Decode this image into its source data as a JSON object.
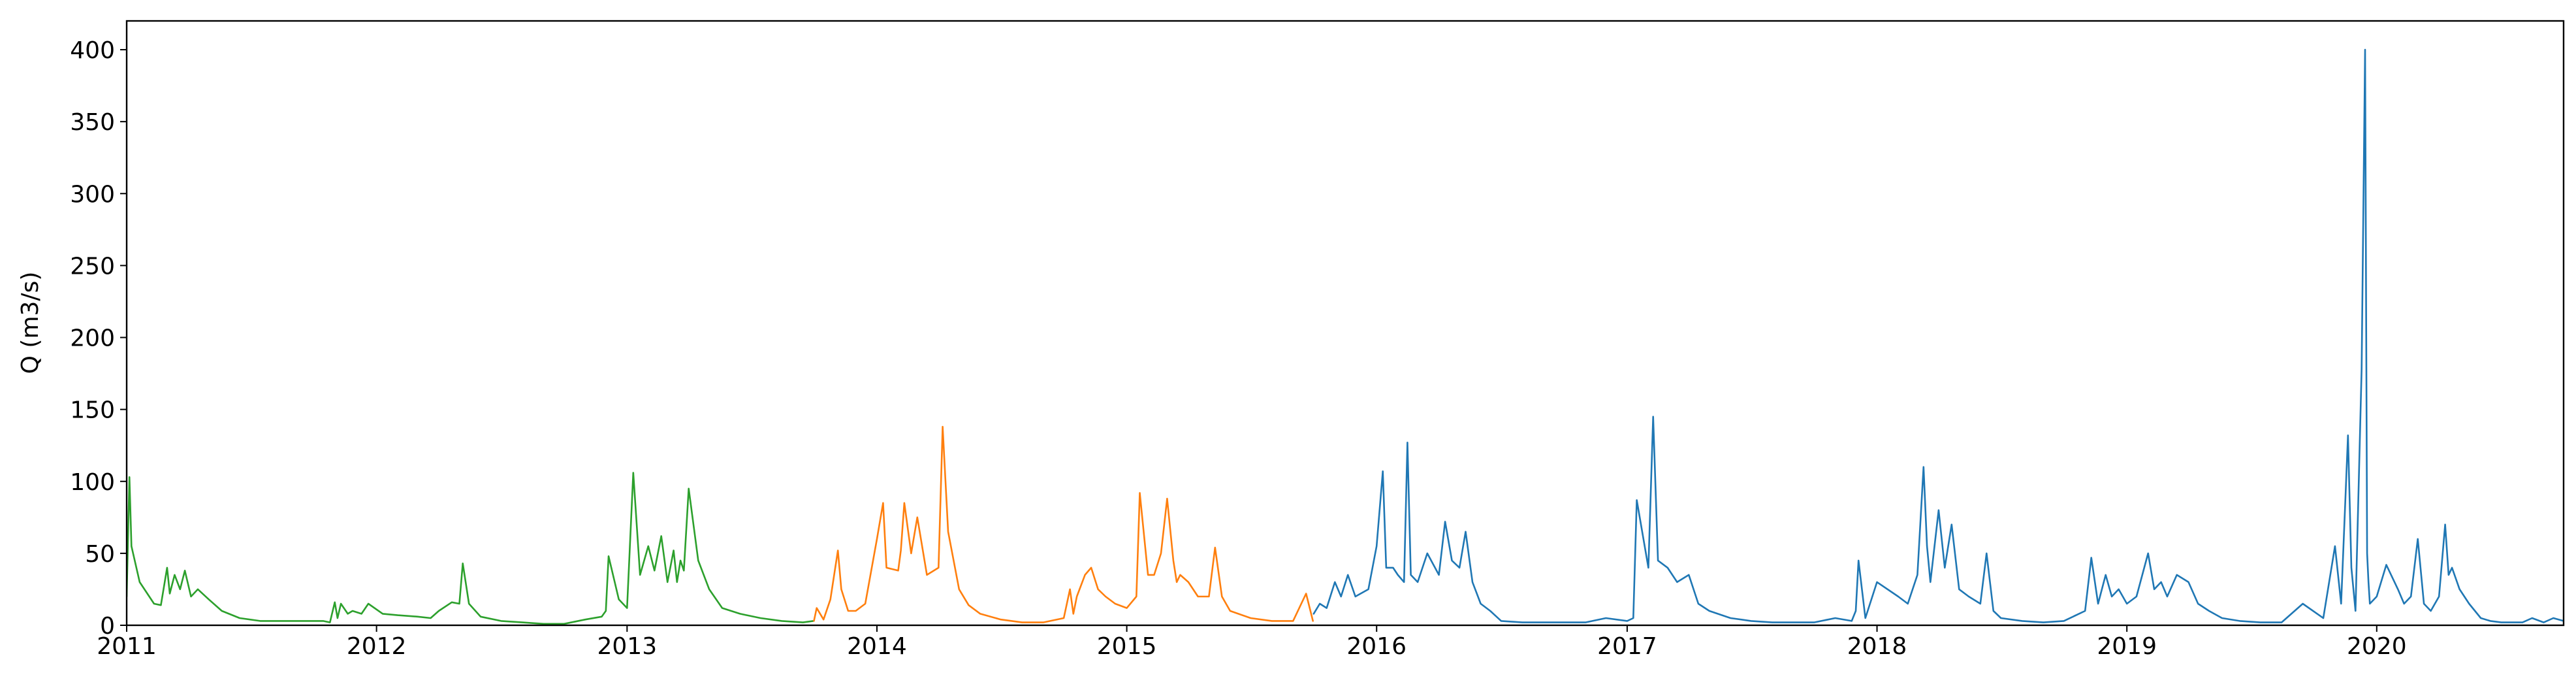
{
  "chart_data": {
    "type": "line",
    "title": "",
    "xlabel": "",
    "ylabel": "Q (m3/s)",
    "xlim": [
      "2011-01-01",
      "2020-09-30"
    ],
    "ylim": [
      0,
      420
    ],
    "grid": false,
    "legend": "none",
    "x_ticks": [
      "2011",
      "2012",
      "2013",
      "2014",
      "2015",
      "2016",
      "2017",
      "2018",
      "2019",
      "2020"
    ],
    "y_ticks": [
      0,
      50,
      100,
      150,
      200,
      250,
      300,
      350,
      400
    ],
    "series": [
      {
        "color": "#2ca02c",
        "x": [
          "2011-01-01",
          "2011-01-05",
          "2011-01-08",
          "2011-01-20",
          "2011-02-10",
          "2011-02-20",
          "2011-03-01",
          "2011-03-05",
          "2011-03-12",
          "2011-03-20",
          "2011-03-27",
          "2011-04-05",
          "2011-04-15",
          "2011-05-01",
          "2011-05-20",
          "2011-06-15",
          "2011-07-15",
          "2011-08-15",
          "2011-09-15",
          "2011-10-15",
          "2011-10-25",
          "2011-11-01",
          "2011-11-05",
          "2011-11-10",
          "2011-11-20",
          "2011-11-27",
          "2011-12-10",
          "2011-12-20",
          "2012-01-10",
          "2012-02-01",
          "2012-03-01",
          "2012-03-20",
          "2012-04-01",
          "2012-04-20",
          "2012-05-01",
          "2012-05-06",
          "2012-05-15",
          "2012-06-01",
          "2012-07-01",
          "2012-08-01",
          "2012-09-01",
          "2012-10-01",
          "2012-11-01",
          "2012-11-25",
          "2012-12-01",
          "2012-12-05",
          "2012-12-20",
          "2013-01-01",
          "2013-01-10",
          "2013-01-20",
          "2013-02-01",
          "2013-02-10",
          "2013-02-20",
          "2013-03-01",
          "2013-03-10",
          "2013-03-15",
          "2013-03-20",
          "2013-03-25",
          "2013-04-01",
          "2013-04-15",
          "2013-05-01",
          "2013-05-20",
          "2013-06-15",
          "2013-07-15",
          "2013-08-15",
          "2013-09-15",
          "2013-09-30"
        ],
        "values": [
          20,
          103,
          55,
          30,
          15,
          14,
          40,
          22,
          35,
          25,
          38,
          20,
          25,
          18,
          10,
          5,
          3,
          3,
          3,
          3,
          2,
          16,
          5,
          15,
          8,
          10,
          8,
          15,
          8,
          7,
          6,
          5,
          10,
          16,
          15,
          43,
          15,
          6,
          3,
          2,
          1,
          1,
          4,
          6,
          10,
          48,
          18,
          12,
          106,
          35,
          55,
          38,
          62,
          30,
          52,
          30,
          45,
          38,
          95,
          45,
          25,
          12,
          8,
          5,
          3,
          2,
          3
        ]
      },
      {
        "color": "#ff7f0e",
        "x": [
          "2013-10-01",
          "2013-10-05",
          "2013-10-15",
          "2013-10-25",
          "2013-11-05",
          "2013-11-10",
          "2013-11-20",
          "2013-12-01",
          "2013-12-15",
          "2014-01-01",
          "2014-01-10",
          "2014-01-15",
          "2014-02-01",
          "2014-02-05",
          "2014-02-10",
          "2014-02-20",
          "2014-03-01",
          "2014-03-15",
          "2014-04-01",
          "2014-04-07",
          "2014-04-15",
          "2014-05-01",
          "2014-05-15",
          "2014-06-01",
          "2014-07-01",
          "2014-08-01",
          "2014-09-01",
          "2014-10-01",
          "2014-10-10",
          "2014-10-15",
          "2014-10-20",
          "2014-11-01",
          "2014-11-10",
          "2014-11-20",
          "2014-12-01",
          "2014-12-15",
          "2015-01-01",
          "2015-01-15",
          "2015-01-20",
          "2015-02-01",
          "2015-02-10",
          "2015-02-20",
          "2015-03-01",
          "2015-03-10",
          "2015-03-15",
          "2015-03-20",
          "2015-04-01",
          "2015-04-15",
          "2015-05-01",
          "2015-05-10",
          "2015-05-20",
          "2015-06-01",
          "2015-07-01",
          "2015-08-01",
          "2015-09-01",
          "2015-09-20",
          "2015-09-30"
        ],
        "values": [
          3,
          12,
          4,
          18,
          52,
          25,
          10,
          10,
          15,
          60,
          85,
          40,
          38,
          52,
          85,
          50,
          75,
          35,
          40,
          138,
          65,
          25,
          14,
          8,
          4,
          2,
          2,
          5,
          25,
          8,
          20,
          35,
          40,
          25,
          20,
          15,
          12,
          20,
          92,
          35,
          35,
          50,
          88,
          45,
          30,
          35,
          30,
          20,
          20,
          54,
          20,
          10,
          5,
          3,
          3,
          22,
          3
        ]
      },
      {
        "color": "#1f77b4",
        "x": [
          "2015-10-01",
          "2015-10-10",
          "2015-10-20",
          "2015-11-01",
          "2015-11-10",
          "2015-11-20",
          "2015-12-01",
          "2015-12-20",
          "2016-01-01",
          "2016-01-10",
          "2016-01-15",
          "2016-01-25",
          "2016-02-01",
          "2016-02-10",
          "2016-02-15",
          "2016-02-20",
          "2016-03-01",
          "2016-03-15",
          "2016-04-01",
          "2016-04-10",
          "2016-04-20",
          "2016-05-01",
          "2016-05-10",
          "2016-05-20",
          "2016-06-01",
          "2016-06-15",
          "2016-07-01",
          "2016-08-01",
          "2016-09-01",
          "2016-10-01",
          "2016-11-01",
          "2016-12-01",
          "2017-01-01",
          "2017-01-10",
          "2017-01-15",
          "2017-02-01",
          "2017-02-08",
          "2017-02-15",
          "2017-03-01",
          "2017-03-15",
          "2017-04-01",
          "2017-04-15",
          "2017-05-01",
          "2017-06-01",
          "2017-07-01",
          "2017-08-01",
          "2017-09-01",
          "2017-10-01",
          "2017-11-01",
          "2017-11-25",
          "2017-12-01",
          "2017-12-05",
          "2017-12-15",
          "2018-01-01",
          "2018-02-01",
          "2018-02-15",
          "2018-03-01",
          "2018-03-10",
          "2018-03-15",
          "2018-03-20",
          "2018-04-01",
          "2018-04-10",
          "2018-04-20",
          "2018-05-01",
          "2018-05-15",
          "2018-06-01",
          "2018-06-10",
          "2018-06-20",
          "2018-07-01",
          "2018-08-01",
          "2018-09-01",
          "2018-10-01",
          "2018-11-01",
          "2018-11-10",
          "2018-11-20",
          "2018-12-01",
          "2018-12-10",
          "2018-12-20",
          "2019-01-01",
          "2019-01-15",
          "2019-02-01",
          "2019-02-10",
          "2019-02-20",
          "2019-03-01",
          "2019-03-15",
          "2019-04-01",
          "2019-04-15",
          "2019-05-01",
          "2019-05-20",
          "2019-06-15",
          "2019-07-15",
          "2019-08-15",
          "2019-09-15",
          "2019-10-15",
          "2019-11-01",
          "2019-11-10",
          "2019-11-20",
          "2019-11-25",
          "2019-12-01",
          "2019-12-10",
          "2019-12-15",
          "2019-12-18",
          "2019-12-20",
          "2019-12-22",
          "2020-01-01",
          "2020-01-15",
          "2020-02-01",
          "2020-02-10",
          "2020-02-20",
          "2020-03-01",
          "2020-03-10",
          "2020-03-20",
          "2020-04-01",
          "2020-04-10",
          "2020-04-15",
          "2020-04-20",
          "2020-05-01",
          "2020-05-15",
          "2020-06-01",
          "2020-06-15",
          "2020-07-01",
          "2020-07-15",
          "2020-08-01",
          "2020-08-15",
          "2020-09-01",
          "2020-09-15",
          "2020-09-30"
        ],
        "values": [
          8,
          15,
          12,
          30,
          20,
          35,
          20,
          25,
          55,
          107,
          40,
          40,
          35,
          30,
          127,
          35,
          30,
          50,
          35,
          72,
          45,
          40,
          65,
          30,
          15,
          10,
          3,
          2,
          2,
          2,
          2,
          5,
          3,
          5,
          87,
          40,
          145,
          45,
          40,
          30,
          35,
          15,
          10,
          5,
          3,
          2,
          2,
          2,
          5,
          3,
          10,
          45,
          5,
          30,
          20,
          15,
          35,
          110,
          55,
          30,
          80,
          40,
          70,
          25,
          20,
          15,
          50,
          10,
          5,
          3,
          2,
          3,
          10,
          47,
          15,
          35,
          20,
          25,
          15,
          20,
          50,
          25,
          30,
          20,
          35,
          30,
          15,
          10,
          5,
          3,
          2,
          2,
          15,
          5,
          55,
          15,
          132,
          40,
          10,
          178,
          400,
          50,
          30,
          15,
          20,
          42,
          25,
          15,
          20,
          60,
          15,
          10,
          20,
          70,
          35,
          40,
          25,
          15,
          5,
          3,
          2,
          2,
          2,
          5,
          2,
          5,
          3
        ]
      }
    ]
  }
}
